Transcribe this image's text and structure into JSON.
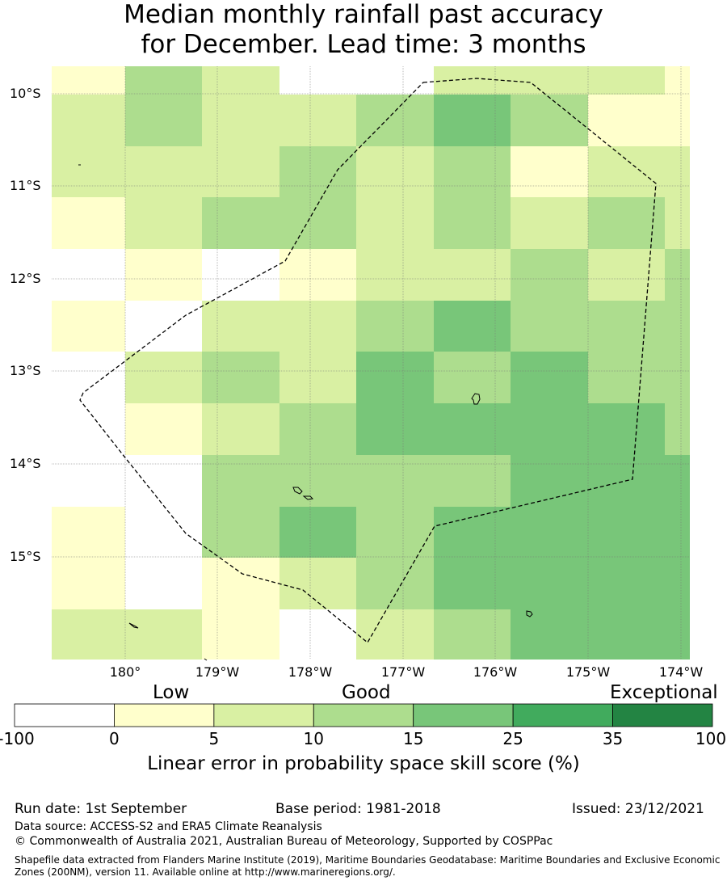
{
  "title_line1": "Median monthly rainfall past accuracy",
  "title_line2": "for December. Lead time: 3 months",
  "map": {
    "lon_labels": [
      "180°",
      "179°W",
      "178°W",
      "177°W",
      "176°W",
      "175°W",
      "174°W"
    ],
    "lat_labels": [
      "10°S",
      "11°S",
      "12°S",
      "13°S",
      "14°S",
      "15°S"
    ],
    "grid_skill_classes": [
      [
        1,
        3,
        2,
        0,
        0,
        2,
        2,
        2,
        1
      ],
      [
        2,
        3,
        2,
        2,
        3,
        4,
        3,
        1,
        1
      ],
      [
        2,
        2,
        2,
        3,
        2,
        3,
        1,
        2,
        2
      ],
      [
        1,
        2,
        3,
        3,
        2,
        3,
        2,
        3,
        2
      ],
      [
        0,
        1,
        0,
        1,
        2,
        2,
        3,
        2,
        3
      ],
      [
        1,
        0,
        2,
        2,
        3,
        4,
        3,
        3,
        3
      ],
      [
        0,
        2,
        3,
        2,
        4,
        3,
        4,
        3,
        3
      ],
      [
        0,
        1,
        2,
        3,
        4,
        4,
        4,
        4,
        3
      ],
      [
        0,
        0,
        3,
        3,
        3,
        3,
        4,
        4,
        4
      ],
      [
        1,
        0,
        3,
        4,
        3,
        4,
        4,
        4,
        4
      ],
      [
        1,
        0,
        1,
        2,
        3,
        4,
        4,
        4,
        4
      ],
      [
        2,
        2,
        1,
        0,
        2,
        3,
        4,
        4,
        4
      ]
    ]
  },
  "colorbar": {
    "word_low": "Low",
    "word_good": "Good",
    "word_exceptional": "Exceptional",
    "ticks": [
      "-100",
      "0",
      "5",
      "10",
      "15",
      "25",
      "35",
      "100"
    ],
    "colors": [
      "#ffffff",
      "#ffffcc",
      "#d9f0a3",
      "#addd8e",
      "#78c679",
      "#41ab5d",
      "#238443"
    ],
    "label": "Linear error in probability space skill score (%)"
  },
  "footer": {
    "run_date": "Run date: 1st September",
    "base_period": "Base period: 1981-2018",
    "issued": "Issued: 23/12/2021",
    "data_source": "Data source: ACCESS-S2 and ERA5 Climate Reanalysis",
    "copyright": "© Commonwealth of Australia 2021, Australian Bureau of Meteorology, Supported by COSPPac",
    "shapefile": "Shapefile data extracted from Flanders Marine Institute (2019), Maritime Boundaries Geodatabase: Maritime Boundaries and Exclusive Economic Zones (200NM), version 11. Available online at http://www.marineregions.org/."
  }
}
